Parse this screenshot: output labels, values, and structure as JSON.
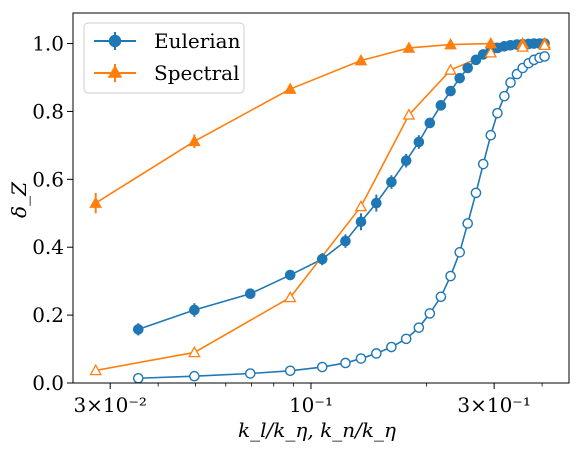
{
  "chart_data": {
    "type": "line",
    "xscale": "log",
    "xlim": [
      0.024,
      0.47
    ],
    "ylim": [
      0.0,
      1.09
    ],
    "xlabel": "k_l/k_η,  k_n/k_η",
    "ylabel": "δ_Z",
    "yticks": [
      {
        "value": 0.0,
        "label": "0.0"
      },
      {
        "value": 0.2,
        "label": "0.2"
      },
      {
        "value": 0.4,
        "label": "0.4"
      },
      {
        "value": 0.6,
        "label": "0.6"
      },
      {
        "value": 0.8,
        "label": "0.8"
      },
      {
        "value": 1.0,
        "label": "1.0"
      }
    ],
    "xticks": [
      {
        "value": 0.03,
        "label": "3×10⁻²"
      },
      {
        "value": 0.1,
        "label": "10⁻¹"
      },
      {
        "value": 0.3,
        "label": "3×10⁻¹"
      }
    ],
    "legend": {
      "position": "top-left"
    },
    "colors": {
      "blue": "#1f77b4",
      "orange": "#ff7f0e"
    },
    "series": [
      {
        "name": "Eulerian",
        "color": "#1f77b4",
        "marker": "circle",
        "filled": true,
        "x": [
          0.0355,
          0.0497,
          0.0695,
          0.0883,
          0.107,
          0.123,
          0.135,
          0.148,
          0.162,
          0.177,
          0.191,
          0.204,
          0.218,
          0.231,
          0.244,
          0.256,
          0.269,
          0.281,
          0.294,
          0.306,
          0.319,
          0.331,
          0.344,
          0.356,
          0.369,
          0.381,
          0.394,
          0.406
        ],
        "y": [
          0.158,
          0.215,
          0.263,
          0.318,
          0.365,
          0.418,
          0.475,
          0.53,
          0.592,
          0.655,
          0.71,
          0.766,
          0.818,
          0.86,
          0.898,
          0.928,
          0.952,
          0.968,
          0.979,
          0.987,
          0.992,
          0.995,
          0.997,
          0.998,
          0.999,
          1.0,
          1.0,
          1.0
        ],
        "yerr": [
          0.018,
          0.02,
          0.015,
          0.012,
          0.018,
          0.02,
          0.025,
          0.025,
          0.02,
          0.02,
          0.02,
          0.015,
          0.012,
          0.01,
          0.008,
          0.006,
          0.005,
          0.004,
          0.003,
          0.003,
          0.002,
          0.002,
          0.002,
          0.002,
          0.001,
          0.001,
          0.001,
          0.001
        ]
      },
      {
        "name": "Spectral",
        "color": "#ff7f0e",
        "marker": "triangle",
        "filled": true,
        "x": [
          0.0275,
          0.0497,
          0.0883,
          0.135,
          0.18,
          0.231,
          0.294,
          0.356,
          0.406
        ],
        "y": [
          0.53,
          0.712,
          0.866,
          0.95,
          0.987,
          0.997,
          1.0,
          1.0,
          1.0
        ],
        "yerr": [
          0.03,
          0.02,
          0.01,
          0.008,
          0.005,
          0.003,
          0.002,
          0.001,
          0.001
        ]
      },
      {
        "name": "",
        "color": "#1f77b4",
        "marker": "circle",
        "filled": false,
        "x": [
          0.0355,
          0.0497,
          0.0695,
          0.0883,
          0.107,
          0.123,
          0.135,
          0.148,
          0.162,
          0.177,
          0.191,
          0.204,
          0.218,
          0.231,
          0.244,
          0.256,
          0.269,
          0.281,
          0.294,
          0.306,
          0.319,
          0.331,
          0.344,
          0.356,
          0.369,
          0.381,
          0.394,
          0.406
        ],
        "y": [
          0.014,
          0.02,
          0.028,
          0.036,
          0.047,
          0.059,
          0.072,
          0.087,
          0.106,
          0.13,
          0.163,
          0.205,
          0.254,
          0.315,
          0.385,
          0.47,
          0.56,
          0.645,
          0.73,
          0.795,
          0.845,
          0.885,
          0.91,
          0.928,
          0.942,
          0.952,
          0.958,
          0.962
        ],
        "yerr": []
      },
      {
        "name": "",
        "color": "#ff7f0e",
        "marker": "triangle",
        "filled": false,
        "x": [
          0.0275,
          0.0497,
          0.0883,
          0.135,
          0.18,
          0.231,
          0.294,
          0.356,
          0.406
        ],
        "y": [
          0.037,
          0.09,
          0.252,
          0.52,
          0.79,
          0.922,
          0.973,
          0.99,
          0.995
        ],
        "yerr": []
      }
    ]
  }
}
